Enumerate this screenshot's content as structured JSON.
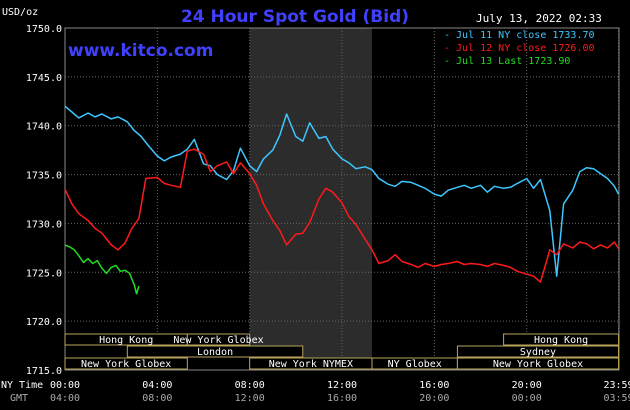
{
  "chart_data": {
    "type": "line",
    "title": "24 Hour Spot Gold (Bid)",
    "watermark": "www.kitco.com",
    "timestamp": "July 13, 2022 02:33",
    "ylabel": "USD/oz",
    "ylim": [
      1715.0,
      1750.0
    ],
    "y_ticks": [
      "1750.0",
      "1745.0",
      "1740.0",
      "1735.0",
      "1730.0",
      "1725.0",
      "1720.0",
      "1715.0"
    ],
    "xlim": [
      0,
      24
    ],
    "x_ticks_ny": [
      "00:00",
      "04:00",
      "08:00",
      "12:00",
      "16:00",
      "20:00",
      "23:59"
    ],
    "x_ticks_gmt": [
      "04:00",
      "08:00",
      "12:00",
      "16:00",
      "20:00",
      "00:00",
      "03:59"
    ],
    "x_row_label_ny": "NY Time",
    "x_row_label_gmt": "GMT",
    "grid": true,
    "legend_position": "top-right",
    "colors": {
      "background": "#000000",
      "grid": "#666666",
      "title": "#4040ff",
      "watermark": "#4040ff",
      "session_shade": "#2c2c2c",
      "session_box": "#b8a45a",
      "text": "#ffffff"
    },
    "series": [
      {
        "name": "Jul 11 NY close 1733.70",
        "color": "#3ec6ff",
        "x": [
          0,
          0.3,
          0.6,
          1.0,
          1.3,
          1.6,
          2.0,
          2.3,
          2.7,
          3.0,
          3.3,
          3.6,
          4.0,
          4.3,
          4.6,
          5.0,
          5.3,
          5.6,
          6.0,
          6.3,
          6.6,
          7.0,
          7.3,
          7.6,
          8.0,
          8.3,
          8.6,
          9.0,
          9.3,
          9.6,
          10.0,
          10.3,
          10.6,
          11.0,
          11.3,
          11.6,
          12.0,
          12.3,
          12.6,
          13.0,
          13.3,
          13.6,
          14.0,
          14.3,
          14.6,
          15.0,
          15.3,
          15.6,
          16.0,
          16.3,
          16.6,
          17.0,
          17.3,
          17.6,
          18.0,
          18.3,
          18.6,
          19.0,
          19.3,
          19.6,
          20.0,
          20.3,
          20.6,
          21.0,
          21.3,
          21.6,
          22.0,
          22.3,
          22.6,
          22.9,
          23.2,
          23.5,
          23.8,
          23.98
        ],
        "y": [
          1742.0,
          1741.4,
          1740.8,
          1741.3,
          1740.9,
          1741.2,
          1740.7,
          1740.9,
          1740.4,
          1739.5,
          1738.9,
          1738.0,
          1736.9,
          1736.4,
          1736.8,
          1737.1,
          1737.6,
          1738.6,
          1736.1,
          1735.9,
          1735.0,
          1734.5,
          1735.4,
          1737.7,
          1735.9,
          1735.3,
          1736.6,
          1737.5,
          1739.0,
          1741.2,
          1738.9,
          1738.4,
          1740.3,
          1738.7,
          1738.9,
          1737.6,
          1736.6,
          1736.2,
          1735.6,
          1735.8,
          1735.5,
          1734.6,
          1734.0,
          1733.8,
          1734.3,
          1734.2,
          1733.9,
          1733.6,
          1733.0,
          1732.8,
          1733.4,
          1733.7,
          1733.9,
          1733.6,
          1733.9,
          1733.2,
          1733.8,
          1733.6,
          1733.7,
          1734.1,
          1734.6,
          1733.6,
          1734.5,
          1731.3,
          1724.6,
          1732.0,
          1733.4,
          1735.3,
          1735.7,
          1735.6,
          1735.1,
          1734.6,
          1733.8,
          1733.0
        ]
      },
      {
        "name": "Jul 12 NY close 1726.00",
        "color": "#ff1a1a",
        "x": [
          0,
          0.3,
          0.6,
          1.0,
          1.3,
          1.6,
          2.0,
          2.3,
          2.6,
          2.9,
          3.2,
          3.5,
          4.0,
          4.3,
          4.6,
          5.0,
          5.3,
          5.6,
          6.0,
          6.3,
          6.6,
          7.0,
          7.3,
          7.6,
          8.0,
          8.3,
          8.6,
          9.0,
          9.3,
          9.6,
          10.0,
          10.3,
          10.6,
          11.0,
          11.3,
          11.6,
          12.0,
          12.3,
          12.6,
          13.0,
          13.3,
          13.6,
          14.0,
          14.3,
          14.6,
          15.0,
          15.3,
          15.6,
          16.0,
          16.3,
          16.6,
          17.0,
          17.3,
          17.6,
          18.0,
          18.3,
          18.6,
          19.0,
          19.3,
          19.6,
          20.0,
          20.3,
          20.6,
          21.0,
          21.3,
          21.6,
          22.0,
          22.3,
          22.6,
          22.9,
          23.2,
          23.5,
          23.8,
          23.98
        ],
        "y": [
          1733.5,
          1732.0,
          1731.0,
          1730.3,
          1729.5,
          1729.0,
          1727.8,
          1727.3,
          1728.0,
          1729.5,
          1730.5,
          1734.6,
          1734.7,
          1734.1,
          1733.9,
          1733.7,
          1737.4,
          1737.6,
          1737.1,
          1735.3,
          1735.9,
          1736.3,
          1735.1,
          1736.2,
          1735.1,
          1733.9,
          1732.0,
          1730.3,
          1729.3,
          1727.8,
          1728.9,
          1729.0,
          1730.1,
          1732.5,
          1733.6,
          1733.2,
          1732.1,
          1730.7,
          1729.9,
          1728.4,
          1727.3,
          1725.9,
          1726.2,
          1726.8,
          1726.1,
          1725.8,
          1725.5,
          1725.9,
          1725.6,
          1725.8,
          1725.9,
          1726.1,
          1725.8,
          1725.9,
          1725.8,
          1725.6,
          1725.9,
          1725.7,
          1725.5,
          1725.1,
          1724.8,
          1724.6,
          1724.0,
          1727.3,
          1726.8,
          1727.9,
          1727.5,
          1728.1,
          1727.9,
          1727.4,
          1727.8,
          1727.5,
          1728.1,
          1727.4
        ]
      },
      {
        "name": "Jul 13 Last 1723.90",
        "color": "#22dd22",
        "x": [
          0,
          0.2,
          0.4,
          0.6,
          0.8,
          1.0,
          1.2,
          1.4,
          1.6,
          1.8,
          2.0,
          2.2,
          2.4,
          2.6,
          2.8,
          3.0,
          3.1,
          3.2
        ],
        "y": [
          1727.8,
          1727.6,
          1727.3,
          1726.7,
          1726.0,
          1726.4,
          1725.9,
          1726.2,
          1725.4,
          1724.9,
          1725.5,
          1725.7,
          1725.1,
          1725.2,
          1724.9,
          1723.7,
          1722.8,
          1723.6
        ]
      }
    ],
    "session_labels": [
      {
        "name": "Hong Kong",
        "start": 0,
        "end": 5.3
      },
      {
        "name": "London",
        "start": 2.7,
        "end": 10.3
      },
      {
        "name": "New York Globex",
        "start": 0,
        "end": 5.3
      },
      {
        "name": "New York Globex",
        "start": 5.3,
        "end": 8.0
      },
      {
        "name": "New York NYMEX",
        "start": 8.0,
        "end": 13.3
      },
      {
        "name": "NY Globex",
        "start": 13.3,
        "end": 17.0
      },
      {
        "name": "Hong Kong",
        "start": 19.0,
        "end": 23.98
      },
      {
        "name": "Sydney",
        "start": 17.0,
        "end": 23.98
      },
      {
        "name": "New York Globex",
        "start": 17.0,
        "end": 23.98
      }
    ],
    "shaded_region": {
      "start": 8.0,
      "end": 13.3
    }
  }
}
